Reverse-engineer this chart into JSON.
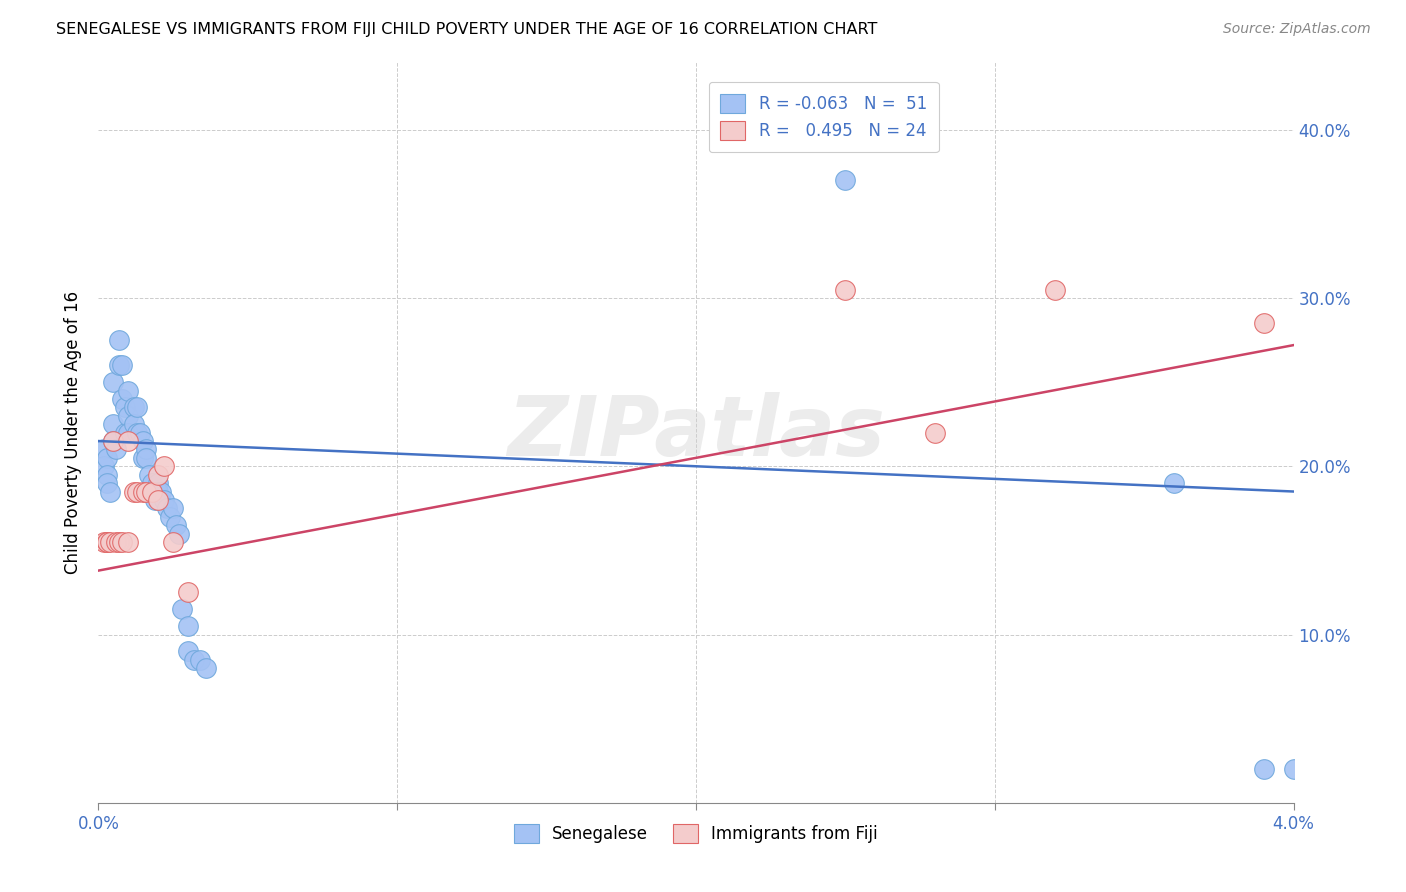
{
  "title": "SENEGALESE VS IMMIGRANTS FROM FIJI CHILD POVERTY UNDER THE AGE OF 16 CORRELATION CHART",
  "source": "Source: ZipAtlas.com",
  "ylabel": "Child Poverty Under the Age of 16",
  "xlim": [
    0.0,
    0.04
  ],
  "ylim": [
    0.0,
    0.44
  ],
  "x_ticks": [
    0.0,
    0.01,
    0.02,
    0.03,
    0.04
  ],
  "x_tick_labels": [
    "0.0%",
    "",
    "",
    "",
    "4.0%"
  ],
  "y_ticks": [
    0.0,
    0.1,
    0.2,
    0.3,
    0.4
  ],
  "y_tick_labels": [
    "",
    "10.0%",
    "20.0%",
    "30.0%",
    "40.0%"
  ],
  "senegalese_color": "#a4c2f4",
  "fiji_color": "#f4cccc",
  "senegalese_edge": "#6fa8dc",
  "fiji_edge": "#e06666",
  "line_blue": "#4472c4",
  "line_pink": "#cc4466",
  "watermark": "ZIPatlas",
  "sen_line_x0": 0.0,
  "sen_line_y0": 0.215,
  "sen_line_x1": 0.04,
  "sen_line_y1": 0.185,
  "fiji_line_x0": 0.0,
  "fiji_line_y0": 0.138,
  "fiji_line_x1": 0.04,
  "fiji_line_y1": 0.272,
  "senegalese_x": [
    0.0002,
    0.0002,
    0.0003,
    0.0003,
    0.0003,
    0.0004,
    0.0005,
    0.0005,
    0.0005,
    0.0006,
    0.0007,
    0.0007,
    0.0008,
    0.0008,
    0.0009,
    0.0009,
    0.001,
    0.001,
    0.001,
    0.0012,
    0.0012,
    0.0013,
    0.0013,
    0.0014,
    0.0015,
    0.0015,
    0.0016,
    0.0016,
    0.0017,
    0.0018,
    0.0019,
    0.002,
    0.002,
    0.0021,
    0.0022,
    0.0023,
    0.0024,
    0.0025,
    0.0026,
    0.0027,
    0.0028,
    0.003,
    0.003,
    0.0032,
    0.0034,
    0.0036,
    0.024,
    0.025,
    0.036,
    0.039,
    0.04
  ],
  "senegalese_y": [
    0.21,
    0.2,
    0.205,
    0.195,
    0.19,
    0.185,
    0.25,
    0.225,
    0.215,
    0.21,
    0.275,
    0.26,
    0.26,
    0.24,
    0.235,
    0.22,
    0.245,
    0.23,
    0.22,
    0.235,
    0.225,
    0.235,
    0.22,
    0.22,
    0.215,
    0.205,
    0.21,
    0.205,
    0.195,
    0.19,
    0.18,
    0.19,
    0.185,
    0.185,
    0.18,
    0.175,
    0.17,
    0.175,
    0.165,
    0.16,
    0.115,
    0.105,
    0.09,
    0.085,
    0.085,
    0.08,
    0.42,
    0.37,
    0.19,
    0.02,
    0.02
  ],
  "fiji_x": [
    0.0002,
    0.0003,
    0.0003,
    0.0004,
    0.0005,
    0.0006,
    0.0007,
    0.0008,
    0.001,
    0.001,
    0.0012,
    0.0013,
    0.0015,
    0.0016,
    0.0018,
    0.002,
    0.002,
    0.0022,
    0.0025,
    0.003,
    0.025,
    0.028,
    0.032,
    0.039
  ],
  "fiji_y": [
    0.155,
    0.155,
    0.155,
    0.155,
    0.215,
    0.155,
    0.155,
    0.155,
    0.215,
    0.155,
    0.185,
    0.185,
    0.185,
    0.185,
    0.185,
    0.195,
    0.18,
    0.2,
    0.155,
    0.125,
    0.305,
    0.22,
    0.305,
    0.285
  ]
}
